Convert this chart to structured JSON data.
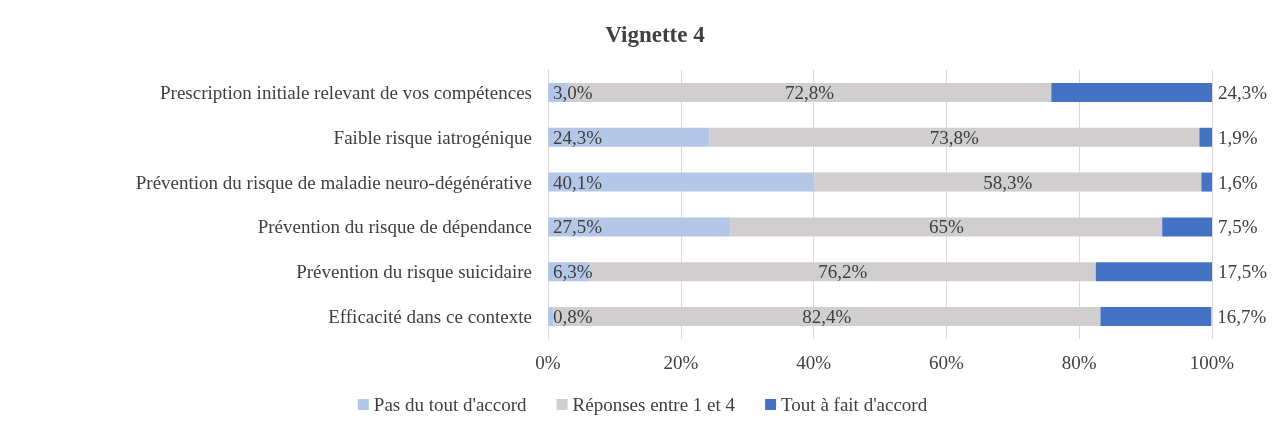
{
  "chart_data": {
    "type": "bar",
    "orientation": "horizontal",
    "stacked": true,
    "title": "Vignette 4",
    "categories": [
      "Prescription initiale relevant de vos compétences",
      "Faible risque iatrogénique",
      "Prévention du risque de maladie neuro-dégénérative",
      "Prévention du risque de dépendance",
      "Prévention du risque suicidaire",
      "Efficacité dans ce contexte"
    ],
    "series": [
      {
        "name": "Pas du tout d'accord",
        "color": "#b4c7e7",
        "values": [
          3.0,
          24.3,
          40.1,
          27.5,
          6.3,
          0.8
        ],
        "value_labels": [
          "3,0%",
          "24,3%",
          "40,1%",
          "27,5%",
          "6,3%",
          "0,8%"
        ]
      },
      {
        "name": "Réponses entre 1 et 4",
        "color": "#d0cece",
        "values": [
          72.8,
          73.8,
          58.3,
          65,
          76.2,
          82.4
        ],
        "value_labels": [
          "72,8%",
          "73,8%",
          "58,3%",
          "65%",
          "76,2%",
          "82,4%"
        ]
      },
      {
        "name": "Tout à fait d'accord",
        "color": "#4472c4",
        "values": [
          24.3,
          1.9,
          1.6,
          7.5,
          17.5,
          16.7
        ],
        "value_labels": [
          "24,3%",
          "1,9%",
          "1,6%",
          "7,5%",
          "17,5%",
          "16,7%"
        ]
      }
    ],
    "xlim": [
      0,
      100
    ],
    "xticks": [
      {
        "value": 0,
        "label": "0%"
      },
      {
        "value": 20,
        "label": "20%"
      },
      {
        "value": 40,
        "label": "40%"
      },
      {
        "value": 60,
        "label": "60%"
      },
      {
        "value": 80,
        "label": "80%"
      },
      {
        "value": 100,
        "label": "100%"
      }
    ],
    "grid": "x",
    "legend": "bottom"
  }
}
